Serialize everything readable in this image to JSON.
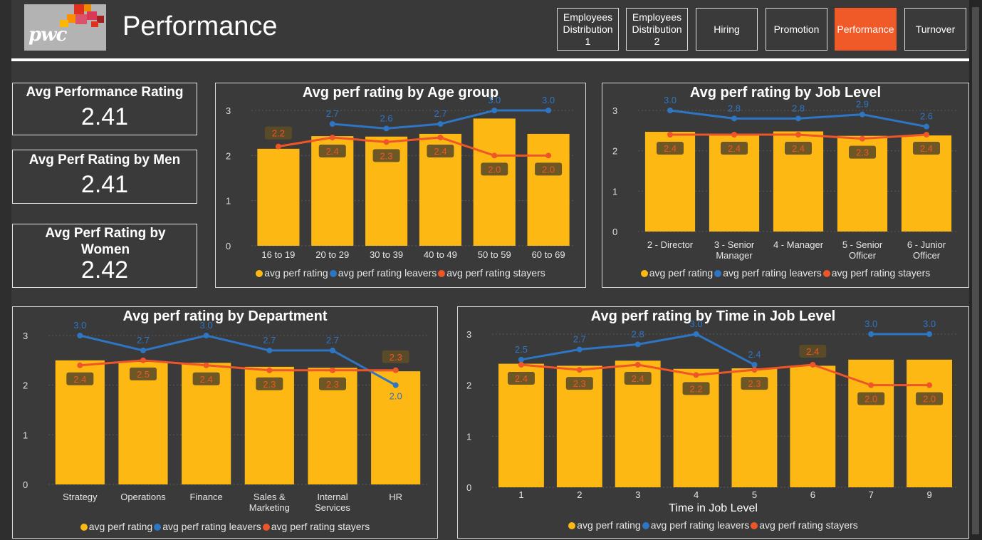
{
  "header": {
    "title": "Performance",
    "logo_text": "pwc",
    "nav": [
      {
        "label": "Employees Distribution 1",
        "active": false
      },
      {
        "label": "Employees Distribution 2",
        "active": false
      },
      {
        "label": "Hiring",
        "active": false
      },
      {
        "label": "Promotion",
        "active": false
      },
      {
        "label": "Performance",
        "active": true
      },
      {
        "label": "Turnover",
        "active": false
      }
    ]
  },
  "kpis": [
    {
      "label": "Avg Performance Rating",
      "value": "2.41"
    },
    {
      "label": "Avg Perf Rating by Men",
      "value": "2.41"
    },
    {
      "label": "Avg Perf Rating by Women",
      "value": "2.42"
    }
  ],
  "colors": {
    "bar": "#fdb813",
    "leavers": "#2e75c4",
    "stayers": "#ee5528",
    "label_box": "#5d4c27",
    "active_nav": "#f05a28"
  },
  "legend": [
    "avg perf rating",
    "avg perf rating leavers",
    "avg perf rating stayers"
  ],
  "chart_data": [
    {
      "id": "age",
      "type": "bar",
      "title": "Avg perf rating by Age group",
      "xlabel": "",
      "ylim": [
        0,
        3
      ],
      "yticks": [
        "0",
        "1",
        "2",
        "3"
      ],
      "categories": [
        "16 to 19",
        "20 to 29",
        "30 to 39",
        "40 to 49",
        "50 to 59",
        "60 to 69"
      ],
      "series": [
        {
          "name": "avg perf rating",
          "kind": "bar",
          "values": [
            2.15,
            2.43,
            2.42,
            2.48,
            2.82,
            2.48
          ]
        },
        {
          "name": "avg perf rating leavers",
          "kind": "line",
          "values": [
            null,
            2.7,
            2.6,
            2.7,
            3.0,
            3.0
          ],
          "labels": [
            null,
            "2.7",
            "2.6",
            "2.7",
            "3.0",
            "3.0"
          ]
        },
        {
          "name": "avg perf rating stayers",
          "kind": "line",
          "values": [
            2.2,
            2.4,
            2.3,
            2.4,
            2.0,
            2.0
          ],
          "labels": [
            "2.2",
            "2.4",
            "2.3",
            "2.4",
            "2.0",
            "2.0"
          ]
        }
      ]
    },
    {
      "id": "joblevel",
      "type": "bar",
      "title": "Avg perf rating by Job Level",
      "xlabel": "",
      "ylim": [
        0,
        3
      ],
      "yticks": [
        "0",
        "1",
        "2",
        "3"
      ],
      "categories": [
        "2 - Director",
        "3 - Senior Manager",
        "4 - Manager",
        "5 - Senior Officer",
        "6 - Junior Officer"
      ],
      "series": [
        {
          "name": "avg perf rating",
          "kind": "bar",
          "values": [
            2.47,
            2.38,
            2.48,
            2.37,
            2.38
          ]
        },
        {
          "name": "avg perf rating leavers",
          "kind": "line",
          "values": [
            3.0,
            2.8,
            2.8,
            2.9,
            2.6
          ],
          "labels": [
            "3.0",
            "2.8",
            "2.8",
            "2.9",
            "2.6"
          ]
        },
        {
          "name": "avg perf rating stayers",
          "kind": "line",
          "values": [
            2.4,
            2.4,
            2.4,
            2.3,
            2.4
          ],
          "labels": [
            "2.4",
            "2.4",
            "2.4",
            "2.3",
            "2.4"
          ]
        }
      ]
    },
    {
      "id": "department",
      "type": "bar",
      "title": "Avg perf rating by Department",
      "xlabel": "",
      "ylim": [
        0,
        3
      ],
      "yticks": [
        "0",
        "1",
        "2",
        "3"
      ],
      "categories": [
        "Strategy",
        "Operations",
        "Finance",
        "Sales & Marketing",
        "Internal Services",
        "HR"
      ],
      "series": [
        {
          "name": "avg perf rating",
          "kind": "bar",
          "values": [
            2.5,
            2.47,
            2.45,
            2.37,
            2.35,
            2.28
          ]
        },
        {
          "name": "avg perf rating leavers",
          "kind": "line",
          "values": [
            3.0,
            2.7,
            3.0,
            2.7,
            2.7,
            2.0
          ],
          "labels": [
            "3.0",
            "2.7",
            "3.0",
            "2.7",
            "2.7",
            "2.0"
          ]
        },
        {
          "name": "avg perf rating stayers",
          "kind": "line",
          "values": [
            2.4,
            2.5,
            2.4,
            2.3,
            2.3,
            2.3
          ],
          "labels": [
            "2.4",
            "2.5",
            "2.4",
            "2.3",
            "2.3",
            "2.3"
          ]
        }
      ]
    },
    {
      "id": "timeinlevel",
      "type": "bar",
      "title": "Avg perf rating by Time in Job Level",
      "xlabel": "Time in Job Level",
      "ylim": [
        0,
        3
      ],
      "yticks": [
        "0",
        "1",
        "2",
        "3"
      ],
      "categories": [
        "1",
        "2",
        "3",
        "4",
        "5",
        "6",
        "7",
        "9"
      ],
      "series": [
        {
          "name": "avg perf rating",
          "kind": "bar",
          "values": [
            2.42,
            2.38,
            2.48,
            2.32,
            2.33,
            2.38,
            2.5,
            2.5
          ]
        },
        {
          "name": "avg perf rating leavers",
          "kind": "line",
          "values": [
            2.5,
            2.7,
            2.8,
            3.0,
            2.4,
            null,
            3.0,
            3.0
          ],
          "labels": [
            "2.5",
            "2.7",
            "2.8",
            "3.0",
            "2.4",
            null,
            "3.0",
            "3.0"
          ]
        },
        {
          "name": "avg perf rating stayers",
          "kind": "line",
          "values": [
            2.4,
            2.3,
            2.4,
            2.2,
            2.3,
            2.4,
            2.0,
            2.0
          ],
          "labels": [
            "2.4",
            "2.3",
            "2.4",
            "2.2",
            "2.3",
            "2.4",
            "2.0",
            "2.0"
          ]
        }
      ]
    }
  ]
}
